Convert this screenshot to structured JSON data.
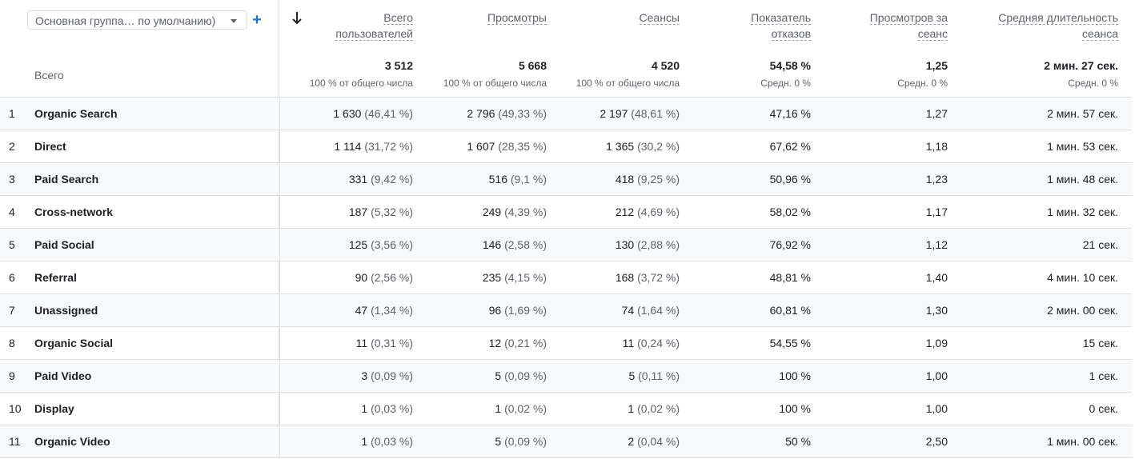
{
  "dimension_selector": {
    "label": "Основная группа… по умолчанию)"
  },
  "total_label": "Всего",
  "columns": [
    {
      "lines": [
        "Всего",
        "пользователей"
      ],
      "total": "3 512",
      "sub": "100 % от общего числа"
    },
    {
      "lines": [
        "Просмотры"
      ],
      "total": "5 668",
      "sub": "100 % от общего числа"
    },
    {
      "lines": [
        "Сеансы"
      ],
      "total": "4 520",
      "sub": "100 % от общего числа"
    },
    {
      "lines": [
        "Показатель",
        "отказов"
      ],
      "total": "54,58 %",
      "sub": "Средн. 0 %"
    },
    {
      "lines": [
        "Просмотров за",
        "сеанс"
      ],
      "total": "1,25",
      "sub": "Средн. 0 %"
    },
    {
      "lines": [
        "Средняя длительность",
        "сеанса"
      ],
      "total": "2 мин. 27 сек.",
      "sub": "Средн. 0 %"
    }
  ],
  "rows": [
    {
      "n": "1",
      "dim": "Organic Search",
      "users": [
        "1 630",
        "(46,41 %)"
      ],
      "views": [
        "2 796",
        "(49,33 %)"
      ],
      "sessions": [
        "2 197",
        "(48,61 %)"
      ],
      "bounce": "47,16 %",
      "vps": "1,27",
      "duration": "2 мин. 57 сек."
    },
    {
      "n": "2",
      "dim": "Direct",
      "users": [
        "1 114",
        "(31,72 %)"
      ],
      "views": [
        "1 607",
        "(28,35 %)"
      ],
      "sessions": [
        "1 365",
        "(30,2 %)"
      ],
      "bounce": "67,62 %",
      "vps": "1,18",
      "duration": "1 мин. 53 сек."
    },
    {
      "n": "3",
      "dim": "Paid Search",
      "users": [
        "331",
        "(9,42 %)"
      ],
      "views": [
        "516",
        "(9,1 %)"
      ],
      "sessions": [
        "418",
        "(9,25 %)"
      ],
      "bounce": "50,96 %",
      "vps": "1,23",
      "duration": "1 мин. 48 сек."
    },
    {
      "n": "4",
      "dim": "Cross-network",
      "users": [
        "187",
        "(5,32 %)"
      ],
      "views": [
        "249",
        "(4,39 %)"
      ],
      "sessions": [
        "212",
        "(4,69 %)"
      ],
      "bounce": "58,02 %",
      "vps": "1,17",
      "duration": "1 мин. 32 сек."
    },
    {
      "n": "5",
      "dim": "Paid Social",
      "users": [
        "125",
        "(3,56 %)"
      ],
      "views": [
        "146",
        "(2,58 %)"
      ],
      "sessions": [
        "130",
        "(2,88 %)"
      ],
      "bounce": "76,92 %",
      "vps": "1,12",
      "duration": "21 сек."
    },
    {
      "n": "6",
      "dim": "Referral",
      "users": [
        "90",
        "(2,56 %)"
      ],
      "views": [
        "235",
        "(4,15 %)"
      ],
      "sessions": [
        "168",
        "(3,72 %)"
      ],
      "bounce": "48,81 %",
      "vps": "1,40",
      "duration": "4 мин. 10 сек."
    },
    {
      "n": "7",
      "dim": "Unassigned",
      "users": [
        "47",
        "(1,34 %)"
      ],
      "views": [
        "96",
        "(1,69 %)"
      ],
      "sessions": [
        "74",
        "(1,64 %)"
      ],
      "bounce": "60,81 %",
      "vps": "1,30",
      "duration": "2 мин. 00 сек."
    },
    {
      "n": "8",
      "dim": "Organic Social",
      "users": [
        "11",
        "(0,31 %)"
      ],
      "views": [
        "12",
        "(0,21 %)"
      ],
      "sessions": [
        "11",
        "(0,24 %)"
      ],
      "bounce": "54,55 %",
      "vps": "1,09",
      "duration": "15 сек."
    },
    {
      "n": "9",
      "dim": "Paid Video",
      "users": [
        "3",
        "(0,09 %)"
      ],
      "views": [
        "5",
        "(0,09 %)"
      ],
      "sessions": [
        "5",
        "(0,11 %)"
      ],
      "bounce": "100 %",
      "vps": "1,00",
      "duration": "1 сек."
    },
    {
      "n": "10",
      "dim": "Display",
      "users": [
        "1",
        "(0,03 %)"
      ],
      "views": [
        "1",
        "(0,02 %)"
      ],
      "sessions": [
        "1",
        "(0,02 %)"
      ],
      "bounce": "100 %",
      "vps": "1,00",
      "duration": "0 сек."
    },
    {
      "n": "11",
      "dim": "Organic Video",
      "users": [
        "1",
        "(0,03 %)"
      ],
      "views": [
        "5",
        "(0,09 %)"
      ],
      "sessions": [
        "2",
        "(0,04 %)"
      ],
      "bounce": "50 %",
      "vps": "2,50",
      "duration": "1 мин. 00 сек."
    }
  ],
  "colors": {
    "accent": "#1a73e8",
    "row_alt": "#f8f9fa",
    "border": "#e0e0e0"
  }
}
